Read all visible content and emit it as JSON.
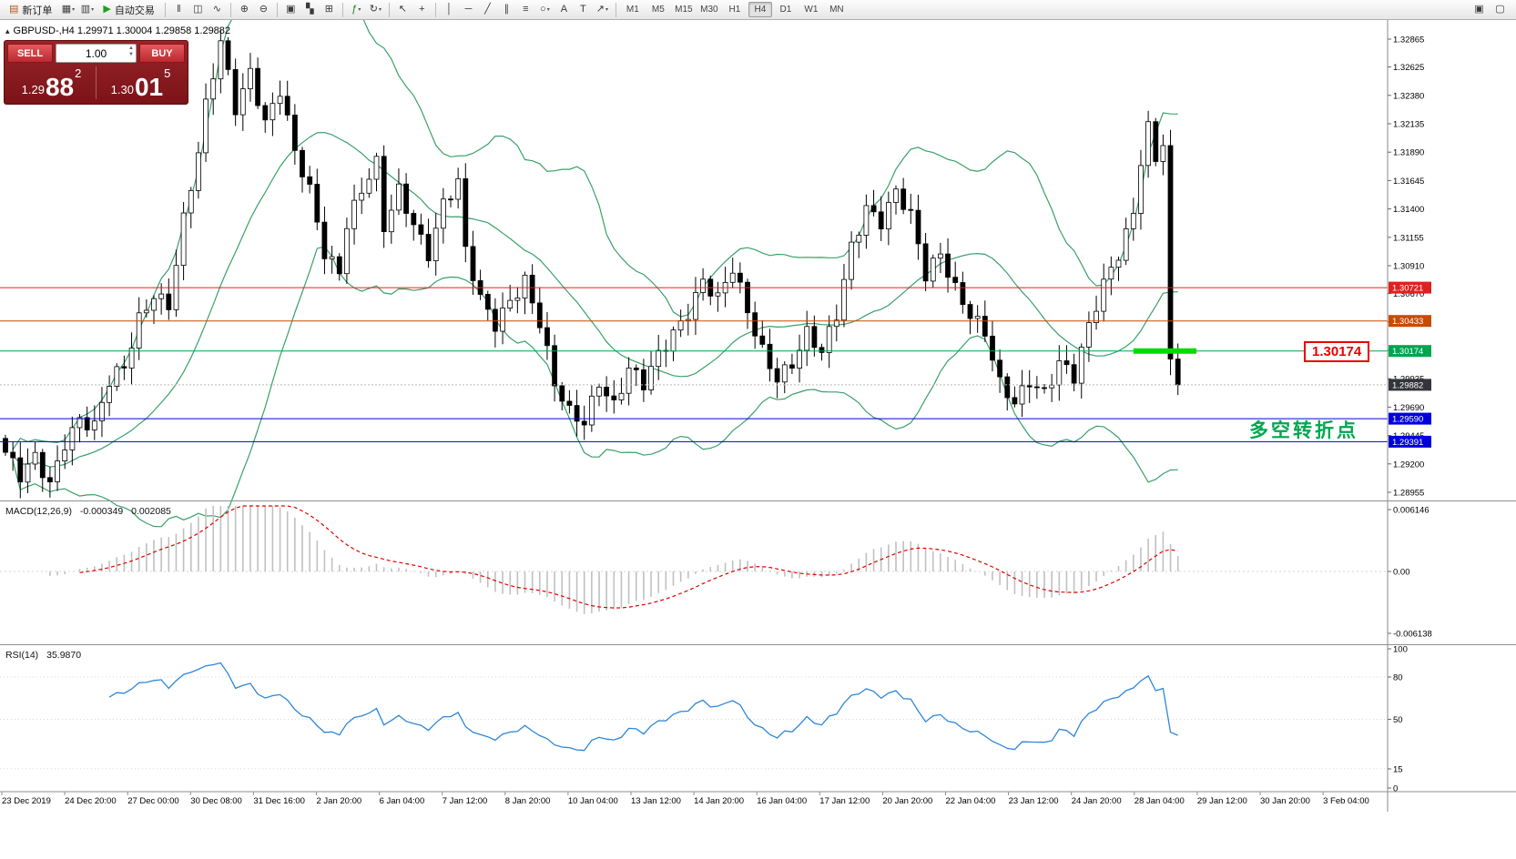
{
  "toolbar": {
    "new_order_label": "新订单",
    "autotrading_label": "自动交易",
    "timeframes": [
      "M1",
      "M5",
      "M15",
      "M30",
      "H1",
      "H4",
      "D1",
      "W1",
      "MN"
    ],
    "active_timeframe": "H4",
    "items": [
      {
        "type": "button",
        "name": "new-order-button",
        "icon": "new-order-icon",
        "glyph": "▤",
        "color": "#b5541a",
        "label": "新订单"
      },
      {
        "type": "icon",
        "name": "new-chart-button",
        "icon": "new-chart-icon",
        "glyph": "▦",
        "dd": true
      },
      {
        "type": "icon",
        "name": "profiles-button",
        "icon": "profiles-icon",
        "glyph": "▥",
        "dd": true
      },
      {
        "type": "button",
        "name": "autotrading-button",
        "icon": "autotrading-play-icon",
        "glyph": "▶",
        "color": "#1fa01f",
        "label": "自动交易"
      },
      {
        "type": "sep"
      },
      {
        "type": "icon",
        "name": "bar-chart-button",
        "icon": "bar-chart-icon",
        "glyph": "‖"
      },
      {
        "type": "icon",
        "name": "candlestick-chart-button",
        "icon": "candlestick-chart-icon",
        "glyph": "◫"
      },
      {
        "type": "icon",
        "name": "line-chart-button",
        "icon": "line-chart-icon",
        "glyph": "∿"
      },
      {
        "type": "sep"
      },
      {
        "type": "icon",
        "name": "zoom-in-button",
        "icon": "zoom-in-icon",
        "glyph": "⊕"
      },
      {
        "type": "icon",
        "name": "zoom-out-button",
        "icon": "zoom-out-icon",
        "glyph": "⊖"
      },
      {
        "type": "sep"
      },
      {
        "type": "icon",
        "name": "tile-windows-button",
        "icon": "tile-windows-icon",
        "glyph": "▣"
      },
      {
        "type": "icon",
        "name": "cascade-windows-button",
        "icon": "cascade-windows-icon",
        "glyph": "▚"
      },
      {
        "type": "icon",
        "name": "arrange-windows-button",
        "icon": "arrange-windows-icon",
        "glyph": "⊞"
      },
      {
        "type": "sep"
      },
      {
        "type": "icon",
        "name": "indicators-button",
        "icon": "indicators-icon",
        "glyph": "ƒ",
        "color": "#1a7a1a",
        "dd": true
      },
      {
        "type": "icon",
        "name": "templates-button",
        "icon": "templates-icon",
        "glyph": "↻",
        "dd": true
      },
      {
        "type": "sep"
      },
      {
        "type": "icon",
        "name": "cursor-button",
        "icon": "cursor-icon",
        "glyph": "↖"
      },
      {
        "type": "icon",
        "name": "crosshair-button",
        "icon": "crosshair-icon",
        "glyph": "+"
      },
      {
        "type": "sep"
      },
      {
        "type": "icon",
        "name": "vertical-line-button",
        "icon": "vertical-line-icon",
        "glyph": "│"
      },
      {
        "type": "icon",
        "name": "horizontal-line-button",
        "icon": "horizontal-line-icon",
        "glyph": "─"
      },
      {
        "type": "icon",
        "name": "trendline-button",
        "icon": "trendline-icon",
        "glyph": "╱"
      },
      {
        "type": "icon",
        "name": "channel-button",
        "icon": "channel-icon",
        "glyph": "∥"
      },
      {
        "type": "icon",
        "name": "fibonacci-button",
        "icon": "fibonacci-icon",
        "glyph": "≡"
      },
      {
        "type": "icon",
        "name": "shapes-button",
        "icon": "shapes-icon",
        "glyph": "○",
        "dd": true
      },
      {
        "type": "icon",
        "name": "text-button",
        "icon": "text-icon",
        "glyph": "A"
      },
      {
        "type": "icon",
        "name": "label-button",
        "icon": "label-icon",
        "glyph": "T"
      },
      {
        "type": "icon",
        "name": "arrows-button",
        "icon": "arrow-icon",
        "glyph": "↗",
        "dd": true
      },
      {
        "type": "sep"
      },
      {
        "type": "tf"
      }
    ],
    "right_icons": [
      {
        "name": "chart-window-button",
        "icon": "chart-window-icon",
        "glyph": "▣"
      },
      {
        "name": "community-button",
        "icon": "community-icon",
        "glyph": "▢"
      }
    ]
  },
  "symbol_header": {
    "collapse_glyph": "▴",
    "text": "GBPUSD-,H4 1.29971 1.30004 1.29858 1.29882"
  },
  "one_click": {
    "sell_label": "SELL",
    "buy_label": "BUY",
    "volume": "1.00",
    "sell_price_main": "1.29",
    "sell_price_big": "88",
    "sell_price_sup": "2",
    "buy_price_main": "1.30",
    "buy_price_big": "01",
    "buy_price_sup": "5"
  },
  "annotations": {
    "level_price_label": "1.30174",
    "cn_note": "多空转折点"
  },
  "time_axis": [
    "23 Dec 2019",
    "24 Dec 20:00",
    "27 Dec 00:00",
    "30 Dec 08:00",
    "31 Dec 16:00",
    "2 Jan 20:00",
    "6 Jan 04:00",
    "7 Jan 12:00",
    "8 Jan 20:00",
    "10 Jan 04:00",
    "13 Jan 12:00",
    "14 Jan 20:00",
    "16 Jan 04:00",
    "17 Jan 12:00",
    "20 Jan 20:00",
    "22 Jan 04:00",
    "23 Jan 12:00",
    "24 Jan 20:00",
    "28 Jan 04:00",
    "29 Jan 12:00",
    "30 Jan 20:00",
    "3 Feb 04:00"
  ],
  "chart_data": [
    {
      "type": "candlestick",
      "symbol": "GBPUSD-",
      "timeframe": "H4",
      "ohlc_display": {
        "open": "1.29971",
        "high": "1.30004",
        "low": "1.29858",
        "close": "1.29882"
      },
      "candle_count": 159,
      "close_anchors": [
        [
          0,
          1.293
        ],
        [
          2,
          1.2906
        ],
        [
          4,
          1.2922
        ],
        [
          6,
          1.2902
        ],
        [
          8,
          1.2942
        ],
        [
          10,
          1.2962
        ],
        [
          12,
          1.2952
        ],
        [
          14,
          1.2988
        ],
        [
          16,
          1.3
        ],
        [
          18,
          1.3045
        ],
        [
          20,
          1.307
        ],
        [
          22,
          1.306
        ],
        [
          24,
          1.313
        ],
        [
          26,
          1.3185
        ],
        [
          27,
          1.3225
        ],
        [
          29,
          1.3283
        ],
        [
          31,
          1.323
        ],
        [
          33,
          1.3262
        ],
        [
          35,
          1.3215
        ],
        [
          37,
          1.324
        ],
        [
          39,
          1.3185
        ],
        [
          41,
          1.3155
        ],
        [
          43,
          1.3105
        ],
        [
          45,
          1.309
        ],
        [
          46,
          1.313
        ],
        [
          48,
          1.3155
        ],
        [
          50,
          1.3175
        ],
        [
          51,
          1.312
        ],
        [
          53,
          1.3155
        ],
        [
          55,
          1.313
        ],
        [
          57,
          1.3105
        ],
        [
          59,
          1.3145
        ],
        [
          61,
          1.316
        ],
        [
          62,
          1.31
        ],
        [
          64,
          1.306
        ],
        [
          66,
          1.3042
        ],
        [
          68,
          1.3065
        ],
        [
          70,
          1.308
        ],
        [
          72,
          1.304
        ],
        [
          74,
          1.2985
        ],
        [
          76,
          1.2962
        ],
        [
          78,
          1.2958
        ],
        [
          80,
          1.2995
        ],
        [
          82,
          1.2972
        ],
        [
          84,
          1.3
        ],
        [
          86,
          1.2985
        ],
        [
          88,
          1.3012
        ],
        [
          90,
          1.3035
        ],
        [
          92,
          1.3055
        ],
        [
          94,
          1.308
        ],
        [
          96,
          1.306
        ],
        [
          98,
          1.3085
        ],
        [
          100,
          1.305
        ],
        [
          102,
          1.302
        ],
        [
          104,
          1.2998
        ],
        [
          106,
          1.3008
        ],
        [
          108,
          1.303
        ],
        [
          110,
          1.3012
        ],
        [
          112,
          1.3048
        ],
        [
          114,
          1.311
        ],
        [
          116,
          1.3145
        ],
        [
          118,
          1.313
        ],
        [
          120,
          1.3152
        ],
        [
          122,
          1.313
        ],
        [
          124,
          1.3082
        ],
        [
          126,
          1.3105
        ],
        [
          128,
          1.3075
        ],
        [
          130,
          1.305
        ],
        [
          132,
          1.303
        ],
        [
          134,
          1.2985
        ],
        [
          136,
          1.2972
        ],
        [
          138,
          1.2995
        ],
        [
          140,
          1.2985
        ],
        [
          142,
          1.3008
        ],
        [
          144,
          1.2992
        ],
        [
          146,
          1.3035
        ],
        [
          148,
          1.3075
        ],
        [
          150,
          1.3105
        ],
        [
          152,
          1.314
        ],
        [
          153,
          1.3185
        ],
        [
          154,
          1.321
        ],
        [
          155,
          1.318
        ],
        [
          156,
          1.3195
        ],
        [
          157,
          1.3
        ],
        [
          158,
          1.29882
        ]
      ],
      "bollinger": {
        "period": 20,
        "deviation": 2,
        "color": "#3aa06a"
      },
      "price_ticks": [
        "1.32865",
        "1.32625",
        "1.32380",
        "1.32135",
        "1.31890",
        "1.31645",
        "1.31400",
        "1.31155",
        "1.30910",
        "1.30670",
        "1.30425",
        "1.30180",
        "1.29935",
        "1.29690",
        "1.29445",
        "1.29200",
        "1.28955"
      ],
      "levels": [
        {
          "price": 1.30721,
          "label": "1.30721",
          "color": "#e02020"
        },
        {
          "price": 1.30433,
          "label": "1.30433",
          "color": "#cc4a00"
        },
        {
          "price": 1.30174,
          "label": "1.30174",
          "color": "#00a550"
        },
        {
          "price": 1.2959,
          "label": "1.29590",
          "color": "#0000dd"
        },
        {
          "price": 1.29391,
          "label": "1.29391",
          "color": "#0000dd"
        }
      ],
      "current_price": 1.29882,
      "current_price_label": "1.29882",
      "current_tag_color": "#34343c",
      "highlight": {
        "price": 1.30174,
        "from_candle": 152,
        "to_candle": 160.5,
        "color": "#00dc00",
        "width": 6
      },
      "up_color": "#ffffff",
      "down_color": "#000000",
      "outline_color": "#000000"
    },
    {
      "type": "macd",
      "label": "MACD(12,26,9)",
      "params": [
        12,
        26,
        9
      ],
      "value_main": "-0.000349",
      "value_signal": "0.002085",
      "axis_labels": [
        "0.006146",
        "0.00",
        "-0.006138"
      ],
      "axis_max": 0.006146,
      "histogram_color": "#c0c0c0",
      "signal_color": "#e00000"
    },
    {
      "type": "rsi",
      "label": "RSI(14)",
      "value": "35.9870",
      "period": 14,
      "levels": [
        80,
        50,
        15
      ],
      "axis_labels": [
        "100",
        "80",
        "50",
        "15",
        "0"
      ],
      "range": [
        0,
        100
      ],
      "line_color": "#2e86d8"
    }
  ]
}
